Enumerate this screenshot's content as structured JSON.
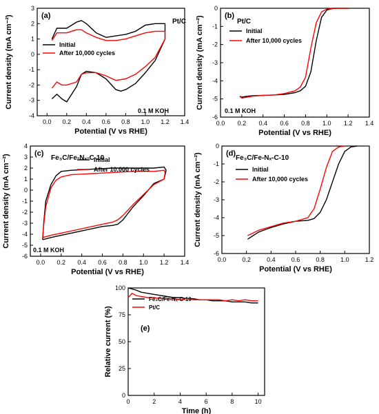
{
  "chart_data": [
    {
      "panel": "(a)",
      "type": "line",
      "title": "Pt/C",
      "annotation": "0.1 M KOH",
      "xlabel": "Potential (V vs RHE)",
      "ylabel": "Current density (mA cm⁻²)",
      "xlim": [
        -0.1,
        1.4
      ],
      "ylim": [
        -4,
        3
      ],
      "xticks": [
        "0.0",
        "0.2",
        "0.4",
        "0.6",
        "0.8",
        "1.0",
        "1.2",
        "1.4"
      ],
      "yticks": [
        "-4",
        "-3",
        "-2",
        "-1",
        "0",
        "1",
        "2",
        "3"
      ],
      "legend_position": "middle-left",
      "series": [
        {
          "name": "Initial",
          "color": "#000000",
          "x": [
            0.05,
            0.1,
            0.2,
            0.3,
            0.35,
            0.4,
            0.5,
            0.6,
            0.7,
            0.8,
            0.9,
            1.0,
            1.1,
            1.2,
            1.2,
            1.1,
            1.0,
            0.9,
            0.8,
            0.75,
            0.7,
            0.6,
            0.5,
            0.4,
            0.35,
            0.3,
            0.2,
            0.15,
            0.1,
            0.05
          ],
          "y": [
            1.0,
            1.7,
            1.7,
            2.1,
            2.2,
            2.0,
            1.4,
            1.1,
            1.2,
            1.3,
            1.5,
            1.9,
            2.0,
            2.0,
            1.0,
            -0.4,
            -1.2,
            -1.9,
            -2.3,
            -2.4,
            -2.3,
            -1.6,
            -1.2,
            -1.1,
            -1.3,
            -2.1,
            -3.1,
            -2.9,
            -2.6,
            -2.9
          ]
        },
        {
          "name": "After 10,000 cycles",
          "color": "#ff0000",
          "x": [
            0.05,
            0.1,
            0.2,
            0.3,
            0.35,
            0.4,
            0.5,
            0.6,
            0.7,
            0.8,
            0.9,
            1.0,
            1.1,
            1.2,
            1.2,
            1.1,
            1.0,
            0.9,
            0.8,
            0.7,
            0.6,
            0.5,
            0.4,
            0.35,
            0.3,
            0.2,
            0.15,
            0.1,
            0.05
          ],
          "y": [
            0.9,
            1.4,
            1.4,
            1.6,
            1.6,
            1.4,
            1.1,
            0.9,
            0.9,
            1.0,
            1.2,
            1.4,
            1.5,
            1.5,
            1.0,
            -0.2,
            -0.8,
            -1.3,
            -1.6,
            -1.7,
            -1.4,
            -1.2,
            -1.2,
            -1.3,
            -1.8,
            -2.0,
            -2.0,
            -1.8,
            -2.2
          ]
        }
      ]
    },
    {
      "panel": "(b)",
      "type": "line",
      "title": "Pt/C",
      "annotation": "0.1 M KOH",
      "xlabel": "Potential (V vs RHE)",
      "ylabel": "Current density (mA cm⁻²)",
      "xlim": [
        0,
        1.4
      ],
      "ylim": [
        -6,
        0
      ],
      "xticks": [
        "0.0",
        "0.2",
        "0.4",
        "0.6",
        "0.8",
        "1.0",
        "1.2",
        "1.4"
      ],
      "yticks": [
        "-6",
        "-5",
        "-4",
        "-3",
        "-2",
        "-1",
        "0"
      ],
      "legend_position": "top-left",
      "series": [
        {
          "name": "Initial",
          "color": "#000000",
          "x": [
            0.18,
            0.2,
            0.25,
            0.3,
            0.4,
            0.5,
            0.6,
            0.7,
            0.75,
            0.8,
            0.85,
            0.9,
            0.95,
            1.0,
            1.05,
            1.1,
            1.15,
            1.2
          ],
          "y": [
            -4.85,
            -4.9,
            -4.85,
            -4.82,
            -4.8,
            -4.78,
            -4.75,
            -4.65,
            -4.55,
            -4.3,
            -3.5,
            -1.8,
            -0.5,
            -0.1,
            -0.02,
            0,
            0,
            0
          ]
        },
        {
          "name": "After 10,000 cycles",
          "color": "#ff0000",
          "x": [
            0.18,
            0.2,
            0.25,
            0.3,
            0.4,
            0.5,
            0.6,
            0.7,
            0.75,
            0.8,
            0.85,
            0.9,
            0.95,
            1.0,
            1.05,
            1.1,
            1.15,
            1.2
          ],
          "y": [
            -4.85,
            -4.95,
            -4.9,
            -4.85,
            -4.8,
            -4.78,
            -4.7,
            -4.55,
            -4.35,
            -3.8,
            -2.2,
            -0.8,
            -0.2,
            -0.05,
            0,
            0,
            0,
            0
          ]
        }
      ]
    },
    {
      "panel": "(c)",
      "type": "line",
      "title": "Fe₃C/Fe-Nₓ-C-10",
      "annotation": "0.1 M KOH",
      "xlabel": "Potential (V vs RHE)",
      "ylabel": "Current density (mA cm⁻²)",
      "xlim": [
        -0.1,
        1.4
      ],
      "ylim": [
        -6,
        4
      ],
      "xticks": [
        "0.0",
        "0.2",
        "0.4",
        "0.6",
        "0.8",
        "1.0",
        "1.2",
        "1.4"
      ],
      "yticks": [
        "-6",
        "-5",
        "-4",
        "-3",
        "-2",
        "-1",
        "0",
        "1",
        "2",
        "3",
        "4"
      ],
      "legend_position": "top-center",
      "series": [
        {
          "name": "Initial",
          "color": "#000000",
          "x": [
            0.02,
            0.03,
            0.05,
            0.1,
            0.15,
            0.2,
            0.3,
            0.5,
            0.7,
            0.9,
            1.1,
            1.2,
            1.22,
            1.2,
            1.1,
            1.0,
            0.9,
            0.8,
            0.75,
            0.7,
            0.6,
            0.4,
            0.2,
            0.1,
            0.02
          ],
          "y": [
            -4.5,
            -3.0,
            -1.0,
            0.5,
            1.3,
            1.7,
            1.8,
            1.9,
            2.0,
            2.0,
            2.0,
            2.1,
            1.8,
            1.0,
            0.6,
            -0.5,
            -1.5,
            -2.7,
            -3.1,
            -3.2,
            -3.3,
            -3.7,
            -4.1,
            -4.3,
            -4.5
          ]
        },
        {
          "name": "After 10,000 cycles",
          "color": "#ff0000",
          "x": [
            0.02,
            0.03,
            0.05,
            0.1,
            0.15,
            0.2,
            0.3,
            0.5,
            0.7,
            0.9,
            1.1,
            1.2,
            1.21,
            1.2,
            1.1,
            1.0,
            0.9,
            0.8,
            0.75,
            0.7,
            0.6,
            0.4,
            0.2,
            0.1,
            0.02
          ],
          "y": [
            -4.3,
            -3.2,
            -1.5,
            0.2,
            0.9,
            1.2,
            1.4,
            1.5,
            1.6,
            1.7,
            1.7,
            1.8,
            1.6,
            1.0,
            0.5,
            -0.4,
            -1.3,
            -2.3,
            -2.7,
            -2.9,
            -3.1,
            -3.5,
            -3.9,
            -4.1,
            -4.3
          ]
        }
      ]
    },
    {
      "panel": "(d)",
      "type": "line",
      "title": "Fe₃C/Fe-Nₓ-C-10",
      "xlabel": "Potential (V vs RHE)",
      "ylabel": "Current density (mA cm⁻²)",
      "xlim": [
        0,
        1.2
      ],
      "ylim": [
        -6,
        0
      ],
      "xticks": [
        "0.0",
        "0.2",
        "0.4",
        "0.6",
        "0.8",
        "1.0",
        "1.2"
      ],
      "yticks": [
        "-6",
        "-5",
        "-4",
        "-3",
        "-2",
        "-1",
        "0"
      ],
      "legend_position": "top-left",
      "series": [
        {
          "name": "Initial",
          "color": "#000000",
          "x": [
            0.21,
            0.3,
            0.4,
            0.5,
            0.6,
            0.7,
            0.75,
            0.8,
            0.85,
            0.9,
            0.95,
            1.0,
            1.05,
            1.1
          ],
          "y": [
            -5.2,
            -4.8,
            -4.55,
            -4.35,
            -4.2,
            -4.15,
            -4.05,
            -3.7,
            -3.0,
            -2.0,
            -1.0,
            -0.3,
            -0.05,
            0
          ]
        },
        {
          "name": "After 10,000 cycles",
          "color": "#ff0000",
          "x": [
            0.21,
            0.3,
            0.4,
            0.5,
            0.6,
            0.7,
            0.75,
            0.8,
            0.85,
            0.9,
            0.95,
            1.0
          ],
          "y": [
            -5.0,
            -4.7,
            -4.5,
            -4.3,
            -4.2,
            -4.0,
            -3.5,
            -2.4,
            -1.2,
            -0.3,
            -0.05,
            0
          ]
        }
      ]
    },
    {
      "panel": "(e)",
      "type": "line",
      "xlabel": "Time (h)",
      "ylabel": "Relative current (%)",
      "xlim": [
        0,
        10.5
      ],
      "ylim": [
        0,
        100
      ],
      "xticks": [
        "0",
        "2",
        "4",
        "6",
        "8",
        "10"
      ],
      "yticks": [
        "0",
        "25",
        "50",
        "75",
        "100"
      ],
      "legend_position": "top-left",
      "series": [
        {
          "name": "Fe₃C/Fe-Nₓ-C-10",
          "color": "#000000",
          "x": [
            0,
            0.3,
            0.6,
            1,
            1.5,
            2,
            2.5,
            3,
            3.5,
            4,
            4.5,
            5,
            5.5,
            6,
            6.5,
            7,
            7.5,
            8,
            8.5,
            9,
            9.5,
            10
          ],
          "y": [
            100,
            99,
            98,
            96,
            95,
            94,
            93,
            92,
            91,
            91,
            90,
            90,
            89,
            89,
            88,
            88,
            88,
            87,
            87,
            87,
            86,
            86
          ]
        },
        {
          "name": "Pt/C",
          "color": "#ff0000",
          "x": [
            0,
            0.3,
            0.6,
            1,
            1.5,
            2,
            2.5,
            3,
            3.5,
            4,
            4.5,
            5,
            5.5,
            6,
            6.5,
            7,
            7.5,
            8,
            8.5,
            9,
            9.5,
            10
          ],
          "y": [
            91,
            95,
            93,
            92,
            91,
            91,
            90,
            90,
            90,
            89,
            90,
            89,
            89,
            89,
            89,
            89,
            88,
            89,
            88,
            89,
            88,
            88
          ]
        }
      ]
    }
  ]
}
